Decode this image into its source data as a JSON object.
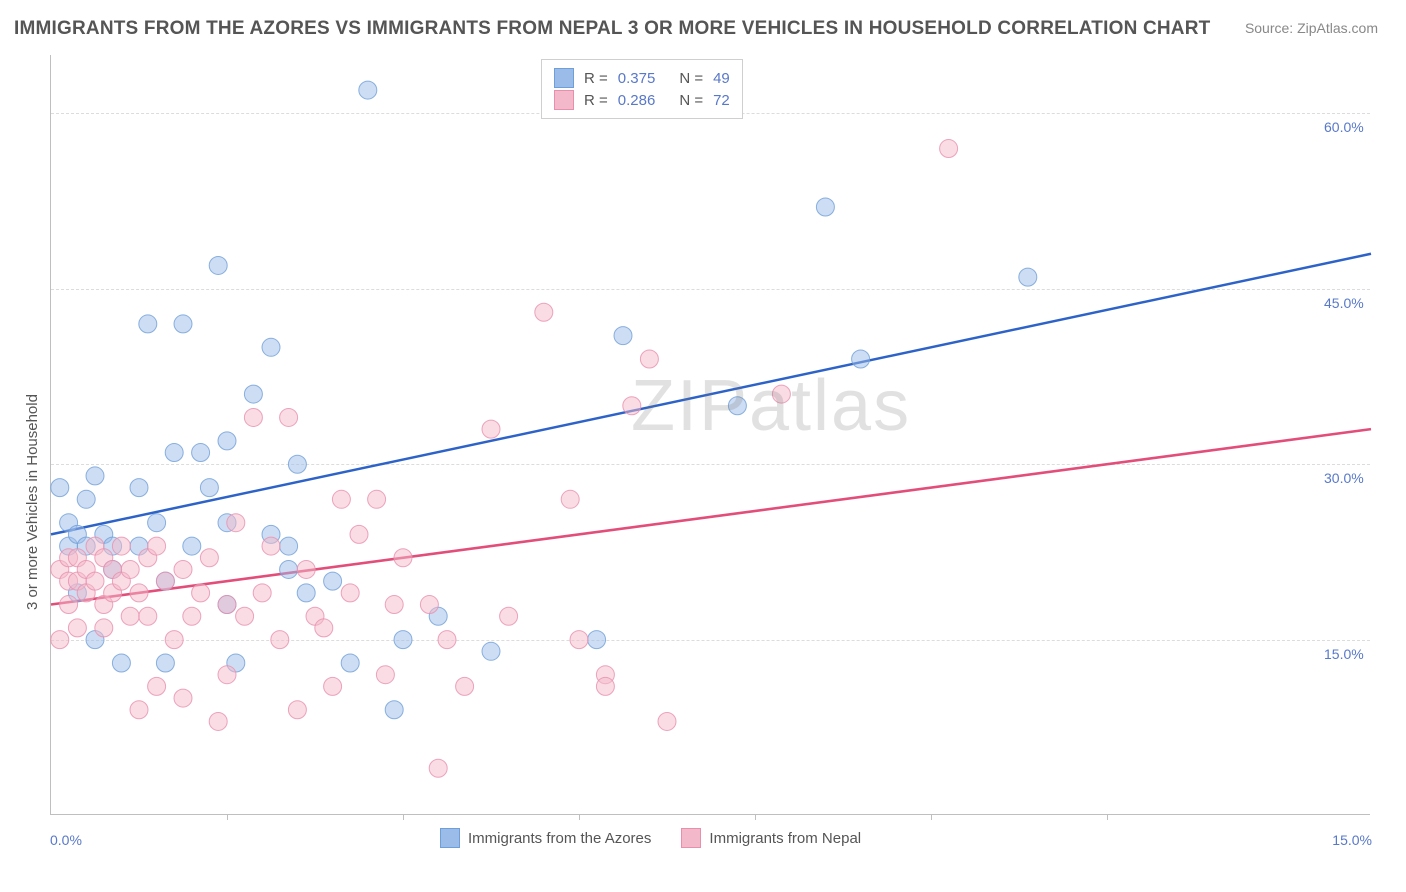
{
  "title": "IMMIGRANTS FROM THE AZORES VS IMMIGRANTS FROM NEPAL 3 OR MORE VEHICLES IN HOUSEHOLD CORRELATION CHART",
  "source": "Source: ZipAtlas.com",
  "y_axis_title": "3 or more Vehicles in Household",
  "watermark": "ZIPatlas",
  "chart": {
    "type": "scatter",
    "xlim": [
      0,
      15
    ],
    "ylim": [
      0,
      65
    ],
    "y_gridlines": [
      15,
      30,
      45,
      60
    ],
    "y_grid_labels": [
      "15.0%",
      "30.0%",
      "45.0%",
      "60.0%"
    ],
    "x_ticks": [
      2,
      4,
      6,
      8,
      10,
      12
    ],
    "x_min_label": "0.0%",
    "x_max_label": "15.0%",
    "grid_color": "#dcdcdc",
    "border_color": "#bfbfbf",
    "background_color": "#ffffff",
    "point_radius": 9,
    "point_opacity": 0.5,
    "line_width": 2.5,
    "series": [
      {
        "name": "Immigrants from the Azores",
        "color_fill": "#9bbce8",
        "color_stroke": "#6f9fd8",
        "line_color": "#2d63c8",
        "r_value": "0.375",
        "n_value": "49",
        "trend": {
          "x1": 0,
          "y1": 24,
          "x2": 15,
          "y2": 48
        },
        "points": [
          [
            0.1,
            28
          ],
          [
            0.2,
            23
          ],
          [
            0.2,
            25
          ],
          [
            0.3,
            19
          ],
          [
            0.3,
            24
          ],
          [
            0.4,
            27
          ],
          [
            0.4,
            23
          ],
          [
            0.5,
            15
          ],
          [
            0.5,
            29
          ],
          [
            0.6,
            24
          ],
          [
            0.7,
            21
          ],
          [
            0.7,
            23
          ],
          [
            0.8,
            13
          ],
          [
            1.0,
            28
          ],
          [
            1.0,
            23
          ],
          [
            1.1,
            42
          ],
          [
            1.2,
            25
          ],
          [
            1.3,
            20
          ],
          [
            1.3,
            13
          ],
          [
            1.4,
            31
          ],
          [
            1.5,
            42
          ],
          [
            1.6,
            23
          ],
          [
            1.7,
            31
          ],
          [
            1.8,
            28
          ],
          [
            1.9,
            47
          ],
          [
            2.0,
            18
          ],
          [
            2.0,
            25
          ],
          [
            2.0,
            32
          ],
          [
            2.1,
            13
          ],
          [
            2.3,
            36
          ],
          [
            2.5,
            40
          ],
          [
            2.5,
            24
          ],
          [
            2.7,
            23
          ],
          [
            2.7,
            21
          ],
          [
            2.8,
            30
          ],
          [
            2.9,
            19
          ],
          [
            3.2,
            20
          ],
          [
            3.4,
            13
          ],
          [
            3.6,
            62
          ],
          [
            3.9,
            9
          ],
          [
            4.0,
            15
          ],
          [
            4.4,
            17
          ],
          [
            5.0,
            14
          ],
          [
            6.2,
            15
          ],
          [
            6.5,
            41
          ],
          [
            7.8,
            35
          ],
          [
            8.8,
            52
          ],
          [
            9.2,
            39
          ],
          [
            11.1,
            46
          ]
        ]
      },
      {
        "name": "Immigrants from Nepal",
        "color_fill": "#f3b9ca",
        "color_stroke": "#e88fae",
        "line_color": "#e34d7a",
        "r_value": "0.286",
        "n_value": "72",
        "trend": {
          "x1": 0,
          "y1": 18,
          "x2": 15,
          "y2": 33
        },
        "points": [
          [
            0.1,
            21
          ],
          [
            0.1,
            15
          ],
          [
            0.2,
            20
          ],
          [
            0.2,
            18
          ],
          [
            0.2,
            22
          ],
          [
            0.3,
            20
          ],
          [
            0.3,
            22
          ],
          [
            0.3,
            16
          ],
          [
            0.4,
            21
          ],
          [
            0.4,
            19
          ],
          [
            0.5,
            23
          ],
          [
            0.5,
            20
          ],
          [
            0.6,
            18
          ],
          [
            0.6,
            22
          ],
          [
            0.6,
            16
          ],
          [
            0.7,
            21
          ],
          [
            0.7,
            19
          ],
          [
            0.8,
            23
          ],
          [
            0.8,
            20
          ],
          [
            0.9,
            17
          ],
          [
            0.9,
            21
          ],
          [
            1.0,
            19
          ],
          [
            1.0,
            9
          ],
          [
            1.1,
            17
          ],
          [
            1.1,
            22
          ],
          [
            1.2,
            11
          ],
          [
            1.2,
            23
          ],
          [
            1.3,
            20
          ],
          [
            1.4,
            15
          ],
          [
            1.5,
            10
          ],
          [
            1.5,
            21
          ],
          [
            1.6,
            17
          ],
          [
            1.7,
            19
          ],
          [
            1.8,
            22
          ],
          [
            1.9,
            8
          ],
          [
            2.0,
            18
          ],
          [
            2.0,
            12
          ],
          [
            2.1,
            25
          ],
          [
            2.2,
            17
          ],
          [
            2.3,
            34
          ],
          [
            2.4,
            19
          ],
          [
            2.5,
            23
          ],
          [
            2.6,
            15
          ],
          [
            2.7,
            34
          ],
          [
            2.8,
            9
          ],
          [
            2.9,
            21
          ],
          [
            3.0,
            17
          ],
          [
            3.1,
            16
          ],
          [
            3.2,
            11
          ],
          [
            3.3,
            27
          ],
          [
            3.4,
            19
          ],
          [
            3.5,
            24
          ],
          [
            3.7,
            27
          ],
          [
            3.8,
            12
          ],
          [
            3.9,
            18
          ],
          [
            4.0,
            22
          ],
          [
            4.3,
            18
          ],
          [
            4.4,
            4
          ],
          [
            4.5,
            15
          ],
          [
            4.7,
            11
          ],
          [
            5.0,
            33
          ],
          [
            5.2,
            17
          ],
          [
            5.6,
            43
          ],
          [
            5.9,
            27
          ],
          [
            6.0,
            15
          ],
          [
            6.3,
            12
          ],
          [
            6.3,
            11
          ],
          [
            6.6,
            35
          ],
          [
            6.8,
            39
          ],
          [
            7.0,
            8
          ],
          [
            8.3,
            36
          ],
          [
            10.2,
            57
          ]
        ]
      }
    ]
  },
  "legend_top": {
    "r_label": "R =",
    "n_label": "N ="
  },
  "legend_bottom": {
    "items": [
      "Immigrants from the Azores",
      "Immigrants from Nepal"
    ]
  }
}
